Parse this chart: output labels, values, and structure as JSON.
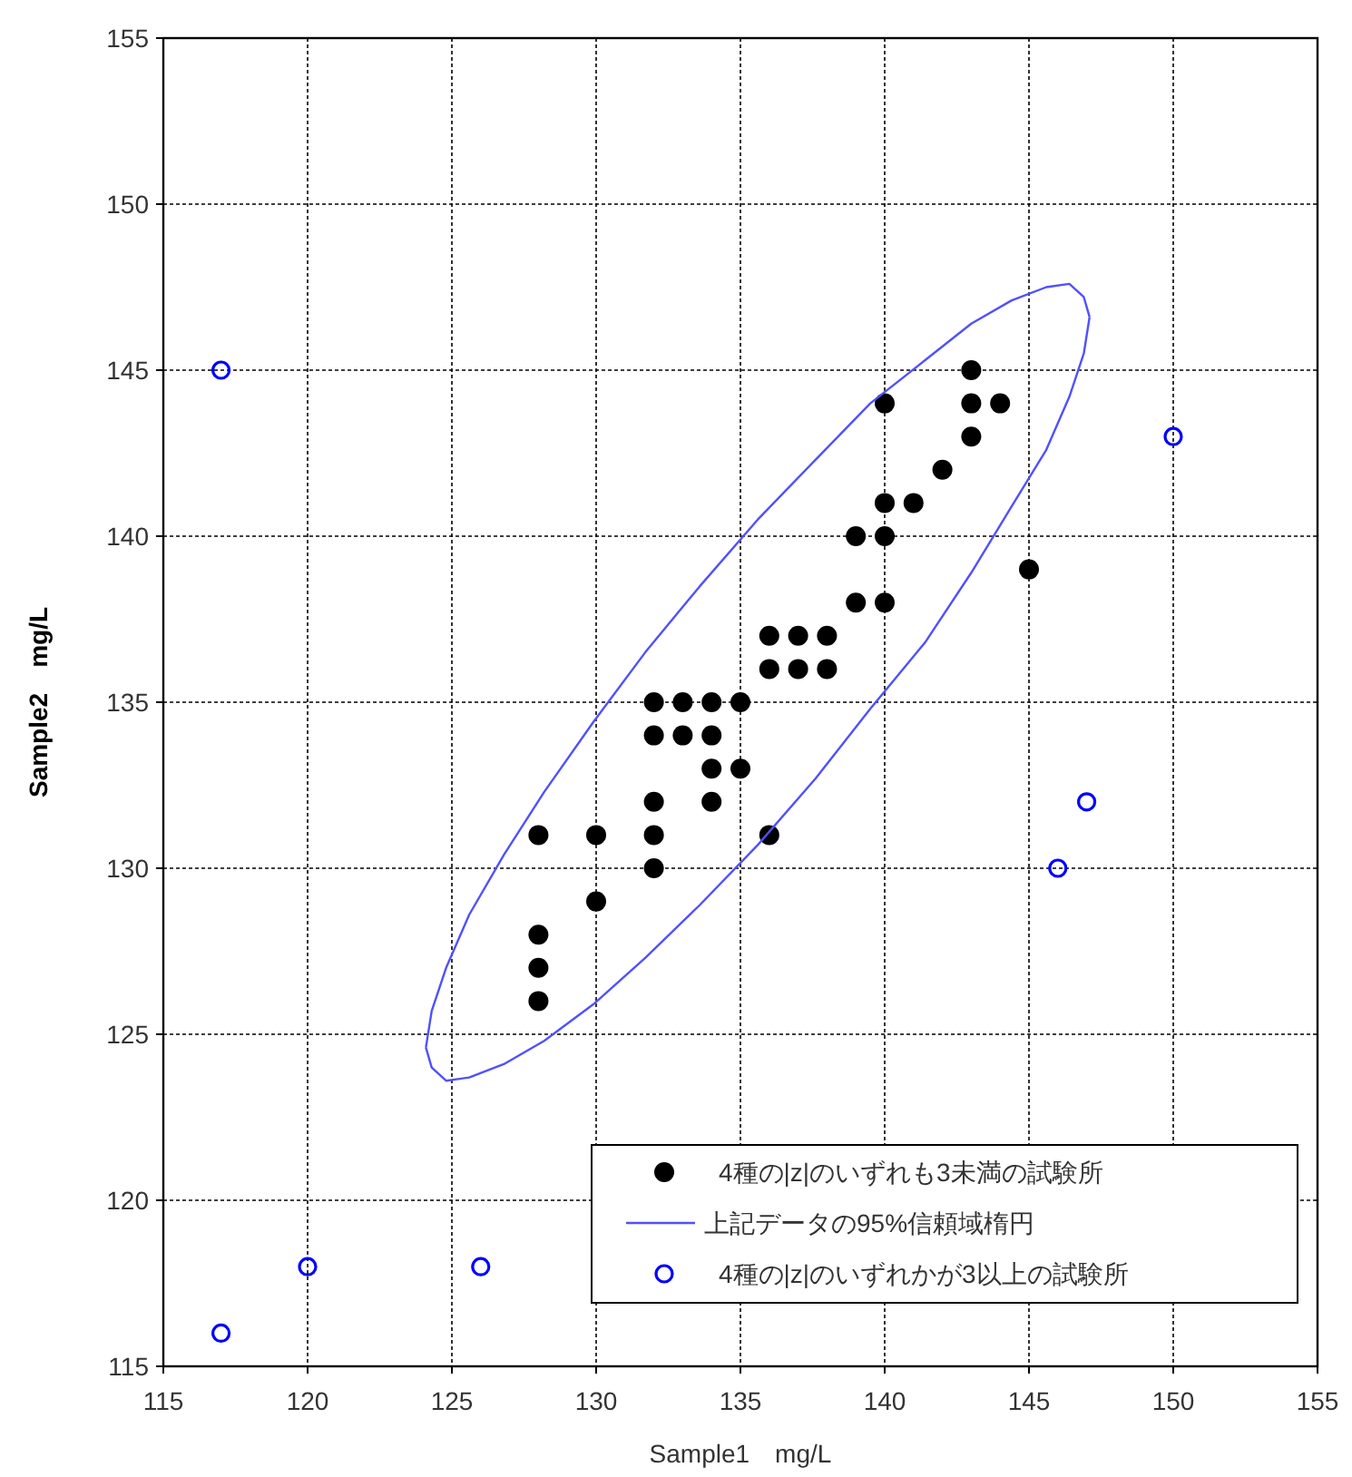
{
  "chart_data": {
    "type": "scatter",
    "xlabel": "Sample1　mg/L",
    "ylabel": "Sample2　mg/L",
    "xlim": [
      115,
      155
    ],
    "ylim": [
      115,
      155
    ],
    "xticks": [
      115,
      120,
      125,
      130,
      135,
      140,
      145,
      150,
      155
    ],
    "yticks": [
      115,
      120,
      125,
      130,
      135,
      140,
      145,
      150,
      155
    ],
    "grid": true,
    "legend": "bottom right",
    "series": [
      {
        "name": "4種の|z|のいずれも3未満の試験所",
        "type": "scatter",
        "marker": "circle",
        "color": "#000000",
        "x": [
          128,
          128,
          128,
          128,
          130,
          130,
          132,
          132,
          132,
          132,
          132,
          133,
          133,
          134,
          134,
          134,
          134,
          135,
          135,
          136,
          136,
          136,
          137,
          137,
          138,
          138,
          139,
          139,
          140,
          140,
          140,
          140,
          141,
          142,
          143,
          143,
          143,
          144,
          145
        ],
        "values": [
          131,
          128,
          127,
          126,
          131,
          129,
          135,
          134,
          132,
          131,
          130,
          135,
          134,
          135,
          134,
          133,
          132,
          135,
          133,
          131,
          137,
          136,
          137,
          136,
          137,
          136,
          140,
          138,
          144,
          141,
          140,
          138,
          141,
          142,
          145,
          144,
          143,
          144,
          139
        ]
      },
      {
        "name": "上記データの95%信頼域楕円",
        "type": "line",
        "marker": "none",
        "color": "#5050ff",
        "x": [
          124.1,
          124.3,
          124.8,
          125.6,
          126.8,
          128.2,
          129.9,
          131.7,
          133.6,
          135.6,
          137.6,
          139.5,
          141.4,
          143.0,
          144.4,
          145.6,
          146.4,
          146.9,
          147.1,
          null,
          124.1,
          124.3,
          124.8,
          125.6,
          126.8,
          128.2,
          129.9,
          131.7,
          133.6,
          135.6,
          137.6,
          139.5,
          141.4,
          143.0,
          144.4,
          145.6,
          146.4,
          146.9,
          147.1
        ],
        "values": [
          124.6,
          125.7,
          127.0,
          128.6,
          130.4,
          132.3,
          134.4,
          136.5,
          138.5,
          140.5,
          142.3,
          144.0,
          145.3,
          146.4,
          147.1,
          147.5,
          147.6,
          147.2,
          146.6,
          null,
          124.6,
          124.0,
          123.6,
          123.7,
          124.1,
          124.8,
          125.9,
          127.3,
          128.9,
          130.7,
          132.7,
          134.8,
          136.8,
          138.9,
          140.9,
          142.6,
          144.2,
          145.5,
          146.6
        ]
      },
      {
        "name": "4種の|z|のいずれかが3以上の試験所",
        "type": "scatter",
        "marker": "circle_open",
        "color": "#0000ff",
        "x": [
          117,
          117,
          120,
          126,
          150,
          147,
          146
        ],
        "values": [
          145,
          116,
          118,
          118,
          143,
          132,
          130
        ]
      }
    ]
  }
}
